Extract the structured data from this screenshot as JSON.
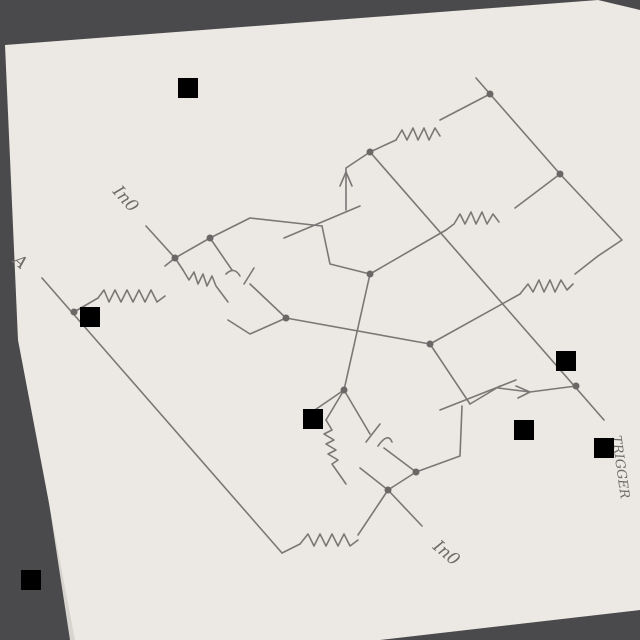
{
  "labels": {
    "input_top": "In0",
    "input_bottom": "In0",
    "left_edge": "A",
    "right_edge": "TRIGGER"
  },
  "colors": {
    "background": "#4a4a4c",
    "paper": "#ece8e3",
    "pencil": "#7a7876",
    "marker": "#000000"
  }
}
